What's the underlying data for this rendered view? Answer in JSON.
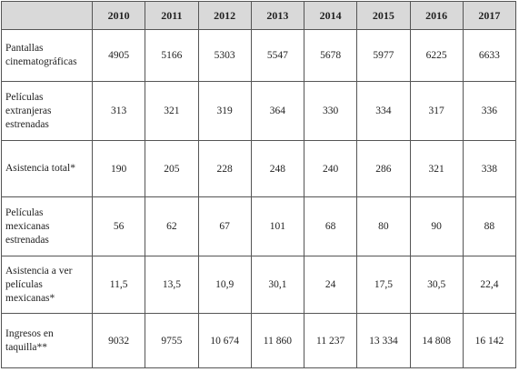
{
  "table": {
    "years": [
      "2010",
      "2011",
      "2012",
      "2013",
      "2014",
      "2015",
      "2016",
      "2017"
    ],
    "rows": [
      {
        "label": "Pantallas cinematográficas",
        "values": [
          "4905",
          "5166",
          "5303",
          "5547",
          "5678",
          "5977",
          "6225",
          "6633"
        ]
      },
      {
        "label": "Películas extranjeras estrenadas",
        "values": [
          "313",
          "321",
          "319",
          "364",
          "330",
          "334",
          "317",
          "336"
        ]
      },
      {
        "label": "Asistencia total*",
        "values": [
          "190",
          "205",
          "228",
          "248",
          "240",
          "286",
          "321",
          "338"
        ]
      },
      {
        "label": "Películas mexicanas estrenadas",
        "values": [
          "56",
          "62",
          "67",
          "101",
          "68",
          "80",
          "90",
          "88"
        ]
      },
      {
        "label": "Asistencia a ver películas mexicanas*",
        "values": [
          "11,5",
          "13,5",
          "10,9",
          "30,1",
          "24",
          "17,5",
          "30,5",
          "22,4"
        ]
      },
      {
        "label": "Ingresos en taquilla**",
        "values": [
          "9032",
          "9755",
          "10 674",
          "11 860",
          "11 237",
          "13 334",
          "14 808",
          "16 142"
        ]
      }
    ]
  }
}
